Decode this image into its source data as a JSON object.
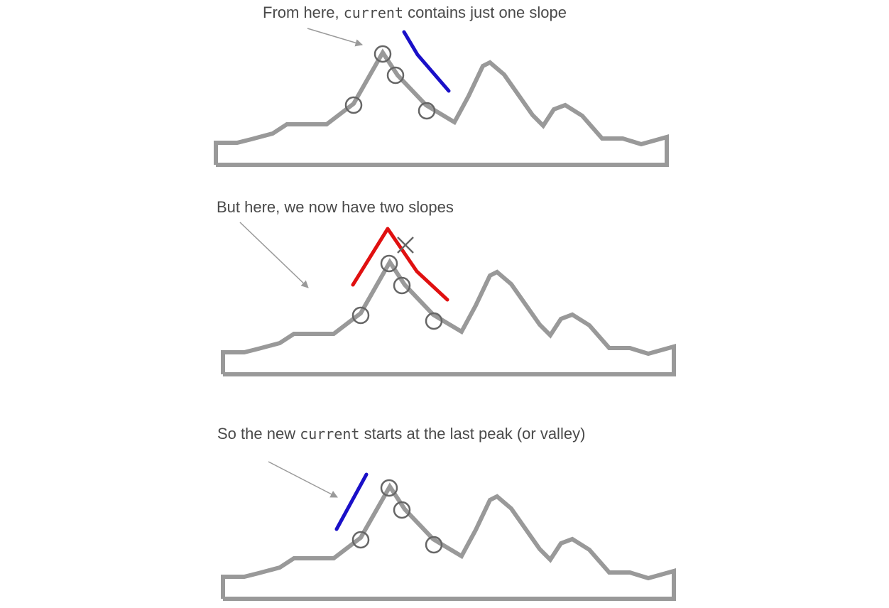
{
  "panels": [
    {
      "caption": {
        "before": "From here, ",
        "code": "current",
        "after": " contains just one slope"
      },
      "highlight_color": "#1a10c8",
      "highlight_kind": "one-slope"
    },
    {
      "caption": {
        "before": "But here, we now have two slopes",
        "code": "",
        "after": ""
      },
      "highlight_color": "#e01010",
      "highlight_kind": "two-slopes"
    },
    {
      "caption": {
        "before": "So the new ",
        "code": "current",
        "after": " starts at the last peak (or valley)"
      },
      "highlight_color": "#1a10c8",
      "highlight_kind": "new-slope"
    }
  ],
  "colors": {
    "terrain": "#999999",
    "marker": "#666666",
    "arrow": "#9a9a9a",
    "text": "#4a4a4a"
  }
}
